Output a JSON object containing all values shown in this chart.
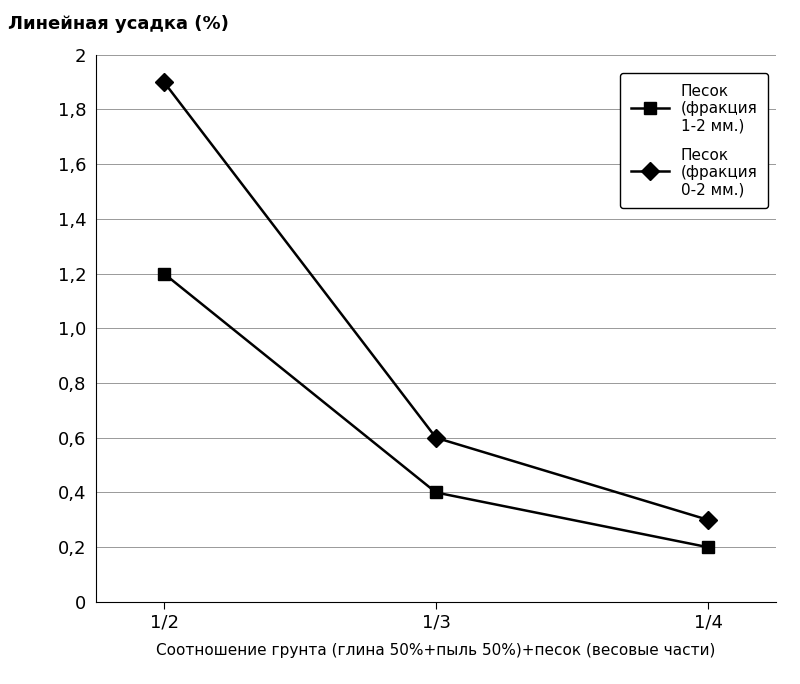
{
  "x_positions": [
    0,
    1,
    2
  ],
  "x_labels": [
    "1/2",
    "1/3",
    "1/4"
  ],
  "series1_y": [
    1.2,
    0.4,
    0.2
  ],
  "series2_y": [
    1.9,
    0.6,
    0.3
  ],
  "series1_label": "Песок\n(фракция\n1-2 мм.)",
  "series2_label": "Песок\n(фракция\n0-2 мм.)",
  "ylabel": "Линейная усадка (%)",
  "xlabel": "Соотношение грунта (глина 50%+пыль 50%)+песок (весовые части)",
  "ylim": [
    0,
    2.0
  ],
  "yticks": [
    0,
    0.2,
    0.4,
    0.6,
    0.8,
    1.0,
    1.2,
    1.4,
    1.6,
    1.8,
    2.0
  ],
  "ytick_labels": [
    "0",
    "0,2",
    "0,4",
    "0,6",
    "0,8",
    "1,0",
    "1,2",
    "1,4",
    "1,6",
    "1,8",
    "2"
  ],
  "line_color": "#000000",
  "marker1": "s",
  "marker2": "D",
  "marker_size": 9,
  "line_width": 1.8,
  "background_color": "#ffffff",
  "legend_box_color": "#ffffff",
  "legend_edge_color": "#000000",
  "grid_color": "#999999",
  "grid_linewidth": 0.7,
  "font_size_ticks": 13,
  "font_size_ylabel": 13,
  "font_size_xlabel": 11,
  "font_size_legend": 11
}
